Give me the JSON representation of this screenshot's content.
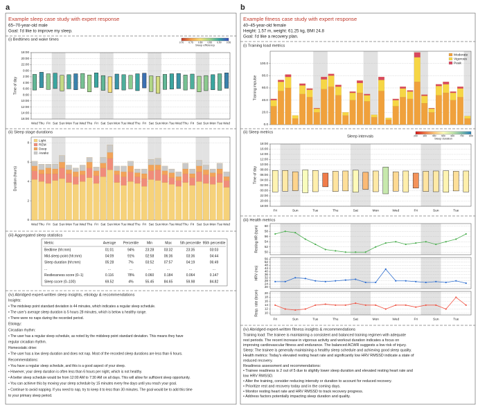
{
  "panel_a": {
    "label": "a",
    "title": "Example sleep case study with expert response",
    "subtitle_lines": [
      "65–70-year-old male",
      "Goal: I'd like to improve my sleep."
    ],
    "table": {
      "title": "(iii) Aggregated sleep statistics",
      "header": [
        "Metric",
        "Average",
        "Percentile",
        "Min",
        "Max",
        "5th percentile",
        "95th percentile"
      ],
      "rows": [
        [
          "Bedtime (hh:mm)",
          "01:01",
          "94%",
          "23:28",
          "03:32",
          "23:35",
          "03:03"
        ],
        [
          "Mid-sleep point (hh:mm)",
          "04:09",
          "91%",
          "02:58",
          "06:36",
          "03:36",
          "04:44"
        ],
        [
          "Sleep duration (hh:mm)",
          "05:28",
          "7%",
          "03:52",
          "07:57",
          "04:19",
          "06:49"
        ],
        [
          "...",
          "...",
          "...",
          "...",
          "...",
          "...",
          "..."
        ],
        [
          "Restlessness score (0–1)",
          "0.116",
          "78%",
          "0.060",
          "0.184",
          "0.064",
          "0.147"
        ],
        [
          "Sleep score (0–100)",
          "69.52",
          "4%",
          "55.45",
          "84.65",
          "59.98",
          "84.82"
        ]
      ]
    },
    "notes": {
      "title": "(iv) Abridged expert-written sleep insights, etiology & recommendations",
      "lines": [
        "Insights:",
        "• The midsleep point standard deviation is 44 minutes, which indicates a regular sleep schedule.",
        "• The user's average sleep duration is 5 hours 28 minutes, which is below a healthy range.",
        "• There were no naps during the recorded period.",
        "Etiology:",
        "Circadian rhythm:",
        "• The user has a regular sleep schedule, as noted by the midsleep point standard deviation. This means they have",
        "regular circadian rhythm.",
        "Homeostatic drive:",
        "• The user has a low sleep duration and does not nap. Most of the recorded sleep durations are less than 6 hours.",
        "Recommendations:",
        "• You have a regular sleep schedule, and this is a good aspect of your sleep.",
        "• However, your sleep duration is often less than 6 hours per night, which is not healthy.",
        "• A better sleep schedule would be from 12:00 AM to 7:30 AM on all days. This will allow for sufficient sleep opportunity.",
        "• You can achieve this by moving your sleep schedule by 15 minutes every few days until you reach your goal.",
        "• Continue to avoid napping. If you need to nap, try to keep it to less than 30 minutes. The goal would be to add this time",
        "to your primary sleep period."
      ]
    }
  },
  "panel_b": {
    "label": "b",
    "title": "Example fitness case study with expert response",
    "subtitle_lines": [
      "40–45-year-old female",
      "Height: 1.57 m, weight: 61.25 kg, BMI 24.8",
      "Goal: I'd like a recovery plan."
    ],
    "section_ii_title": "(ii) Sleep metrics",
    "section_iii_title": "(iii) Health metrics",
    "notes": {
      "title": "(iv) Abridged expert-written fitness insights & recommendations",
      "lines": [
        "Training load: The trainee is maintaining a consistent and balanced training regimen with adequate",
        "rest periods. The recent increase in vigorous activity and workout duration indicates a focus on",
        "improving cardiovascular fitness and endurance. The balanced ACWR suggests a low risk of injury.",
        "Sleep: The trainee is generally maintaining a healthy sleep schedule and achieving good sleep quality.",
        "Health metrics: Today's elevated resting heart rate and significantly low HRV RMSSD indicate a state of",
        "reduced recovery.",
        "Readiness assessment and recommendations:",
        "• Trainee readiness is 2 out of 5 due to slightly lower sleep duration and elevated resting heart rate and",
        "low HRV RMSSD.",
        "• Alter the training, consider reducing intensity or duration to account for reduced recovery.",
        "• Prioritize rest and recovery today and in the coming days.",
        "• Monitor resting heart rate and HRV RMSSD to track recovery progress.",
        "• Address factors potentially impacting sleep duration and quality."
      ]
    }
  },
  "chart_data": [
    {
      "type": "range_bar",
      "title": "(i) Bedtimes and wake times",
      "ylabel": "Time of day",
      "y_inverted": true,
      "categories": [
        "Wed",
        "Thu",
        "Fri",
        "Sat",
        "Sun",
        "Mon",
        "Tue",
        "Wed",
        "Thu",
        "Fri",
        "Sat",
        "Sun",
        "Mon",
        "Tue",
        "Wed",
        "Thu",
        "Fri",
        "Sat",
        "Sun",
        "Mon",
        "Tue",
        "Wed",
        "Thu",
        "Fri",
        "Sat",
        "Sun",
        "Mon",
        "Tue",
        "Wed"
      ],
      "start": [
        25.2,
        24.5,
        25.0,
        24.8,
        25.5,
        25.3,
        25.0,
        24.9,
        25.4,
        24.7,
        25.6,
        26.0,
        25.1,
        25.3,
        25.5,
        25.0,
        24.8,
        25.7,
        25.9,
        25.2,
        25.0,
        24.9,
        25.4,
        25.1,
        25.8,
        25.6,
        25.3,
        25.0,
        24.7
      ],
      "end": [
        30.4,
        29.6,
        30.2,
        29.9,
        30.7,
        30.0,
        30.3,
        29.8,
        31.0,
        29.5,
        30.5,
        31.2,
        30.1,
        30.4,
        30.0,
        30.6,
        29.7,
        30.9,
        31.5,
        30.2,
        30.1,
        29.9,
        30.4,
        30.0,
        31.0,
        30.6,
        30.3,
        30.5,
        29.8
      ],
      "color_values": [
        0.88,
        0.91,
        0.86,
        0.9,
        0.83,
        0.89,
        0.92,
        0.87,
        0.85,
        0.9,
        0.88,
        0.8,
        0.91,
        0.89,
        0.86,
        0.9,
        0.93,
        0.84,
        0.82,
        0.88,
        0.9,
        0.91,
        0.87,
        0.89,
        0.85,
        0.86,
        0.9,
        0.88,
        0.92
      ],
      "colorbar": {
        "label": "Sleep efficiency",
        "range": [
          0.7,
          0.95
        ],
        "ticks": [
          {
            "value": 0.7,
            "label": "0.70"
          },
          0.75,
          {
            "value": 0.8,
            "label": "0.80"
          },
          0.85,
          {
            "value": 0.9,
            "label": "0.90"
          },
          0.95
        ],
        "colors": [
          "#c0392b",
          "#f39c4a",
          "#f7e27a",
          "#9fd38a",
          "#3aa6a0",
          "#3b4cc0"
        ]
      },
      "shaded_categories": [
        3,
        4,
        10,
        11,
        17,
        18,
        24,
        25
      ],
      "ylim": [
        18,
        40
      ],
      "yticks": [
        {
          "value": 18,
          "label": "18:00"
        },
        {
          "value": 20,
          "label": "20:00"
        },
        {
          "value": 22,
          "label": "22:00"
        },
        {
          "value": 24,
          "label": "0:00"
        },
        {
          "value": 26,
          "label": "2:00"
        },
        {
          "value": 28,
          "label": "4:00"
        },
        {
          "value": 30,
          "label": "6:00"
        },
        {
          "value": 32,
          "label": "8:00"
        },
        {
          "value": 34,
          "label": "10:00"
        },
        {
          "value": 36,
          "label": "12:00"
        },
        {
          "value": 38,
          "label": "14:00"
        },
        {
          "value": 40,
          "label": "16:00"
        }
      ],
      "grid": true
    },
    {
      "type": "stacked_bar",
      "title": "(ii) Sleep stage durations",
      "ylabel": "Duration (hours)",
      "legend": "upper left",
      "categories": [
        "Wed",
        "Thu",
        "Fri",
        "Sat",
        "Sun",
        "Mon",
        "Tue",
        "Wed",
        "Thu",
        "Fri",
        "Sat",
        "Sun",
        "Mon",
        "Tue",
        "Wed",
        "Thu",
        "Fri",
        "Sat",
        "Sun",
        "Mon",
        "Tue",
        "Wed",
        "Thu",
        "Fri",
        "Sat",
        "Sun",
        "Mon",
        "Tue",
        "Wed"
      ],
      "series": [
        {
          "name": "Light",
          "color": "#f6d27a",
          "values": [
            4.2,
            4.0,
            3.8,
            4.1,
            4.3,
            3.9,
            3.7,
            4.0,
            4.4,
            3.8,
            4.5,
            5.2,
            3.9,
            3.6,
            4.0,
            3.8,
            3.5,
            4.2,
            4.1,
            3.9,
            3.7,
            3.5,
            3.9,
            3.6,
            4.0,
            3.8,
            3.7,
            3.9,
            3.4
          ]
        },
        {
          "name": "REM",
          "color": "#f08c7a",
          "values": [
            0.9,
            0.8,
            1.0,
            0.7,
            1.1,
            0.9,
            0.8,
            0.7,
            1.0,
            0.8,
            0.9,
            1.2,
            0.8,
            0.9,
            1.0,
            0.7,
            0.8,
            0.9,
            1.1,
            0.8,
            0.7,
            0.6,
            0.9,
            0.8,
            1.0,
            0.9,
            0.8,
            0.9,
            0.7
          ]
        },
        {
          "name": "Deep",
          "color": "#f2a35a",
          "values": [
            0.5,
            0.4,
            0.6,
            0.5,
            0.6,
            0.4,
            0.5,
            0.4,
            0.6,
            0.5,
            0.5,
            0.6,
            0.4,
            0.5,
            0.6,
            0.4,
            0.5,
            0.6,
            0.5,
            0.4,
            0.5,
            0.4,
            0.5,
            0.4,
            0.6,
            0.5,
            0.4,
            0.5,
            0.4
          ]
        },
        {
          "name": "Awake",
          "color": "#c9c9c9",
          "values": [
            0.5,
            0.6,
            0.4,
            0.5,
            0.7,
            0.5,
            0.4,
            0.6,
            0.5,
            0.4,
            0.6,
            0.8,
            0.5,
            0.6,
            0.5,
            0.4,
            0.5,
            0.6,
            0.7,
            0.5,
            0.4,
            0.5,
            0.6,
            0.5,
            0.6,
            0.5,
            0.4,
            0.6,
            0.5
          ]
        }
      ],
      "shaded_categories": [
        3,
        4,
        10,
        11,
        17,
        18,
        24,
        25
      ],
      "ylim": [
        0,
        8.6
      ],
      "yticks": [
        0,
        2,
        4,
        6,
        8
      ],
      "grid": true
    },
    {
      "type": "stacked_bar",
      "title": "(i) Training load metrics",
      "ylabel": "Training impulse",
      "legend": "upper right",
      "series": [
        {
          "name": "Moderate",
          "color": "#f0a13c",
          "values": [
            30,
            55,
            60,
            10,
            50,
            45,
            20,
            58,
            62,
            48,
            15,
            40,
            52,
            38,
            12,
            55,
            8,
            30,
            45,
            42,
            70,
            35,
            20,
            48,
            52,
            40,
            45,
            10
          ]
        },
        {
          "name": "Vigorous",
          "color": "#f6d645",
          "values": [
            10,
            15,
            18,
            5,
            14,
            12,
            6,
            16,
            18,
            14,
            5,
            12,
            16,
            10,
            4,
            18,
            3,
            10,
            14,
            12,
            40,
            12,
            6,
            15,
            14,
            12,
            14,
            4
          ]
        },
        {
          "name": "Peak",
          "color": "#d9485f",
          "values": [
            2,
            3,
            4,
            0,
            3,
            2,
            1,
            4,
            3,
            3,
            0,
            2,
            4,
            2,
            0,
            5,
            0,
            2,
            3,
            2,
            8,
            2,
            1,
            3,
            4,
            2,
            3,
            0
          ]
        }
      ],
      "shaded_categories": [
        6,
        7,
        13,
        14,
        20,
        21,
        27
      ],
      "ylim": [
        0,
        120
      ],
      "yticks": [
        {
          "value": 0,
          "label": "0.0"
        },
        {
          "value": 20,
          "label": "20.0"
        },
        {
          "value": 40,
          "label": "40.0"
        },
        {
          "value": 60,
          "label": "60.0"
        },
        {
          "value": 80,
          "label": "80.0"
        },
        {
          "value": 100,
          "label": "100.0"
        }
      ],
      "grid": true
    },
    {
      "type": "range_bar",
      "title": "Sleep intervals",
      "ylabel": "Time of day",
      "categories": [
        "Fri",
        null,
        "Sun",
        null,
        "Tue",
        null,
        "Thu",
        null,
        "Sat",
        null,
        "Mon",
        null,
        "Wed",
        null,
        "Fri",
        null,
        "Sun",
        null,
        "Tue",
        null
      ],
      "start": [
        23.5,
        23.8,
        24.0,
        23.2,
        23.6,
        25.5,
        23.7,
        23.9,
        23.4,
        24.5,
        23.6,
        22.8,
        23.8,
        23.5,
        25.0,
        23.7,
        23.6,
        23.4,
        23.9,
        23.5
      ],
      "end": [
        31.8,
        31.8,
        31.3,
        32.0,
        31.8,
        30.8,
        31.5,
        31.6,
        31.9,
        31.1,
        31.6,
        33.1,
        31.3,
        31.6,
        30.8,
        31.5,
        31.6,
        31.7,
        31.5,
        31.6
      ],
      "color_values": [
        480,
        460,
        420,
        510,
        470,
        300,
        450,
        440,
        490,
        380,
        460,
        600,
        430,
        470,
        330,
        450,
        460,
        480,
        440,
        470
      ],
      "colorbar": {
        "label": "Sleep duration",
        "range": [
          200,
          800
        ],
        "ticks": [
          200,
          300,
          400,
          500,
          600,
          700,
          800
        ],
        "colors": [
          "#d7191c",
          "#f07c4a",
          "#fec980",
          "#ffffbf",
          "#c7e9ad",
          "#80bfac",
          "#2b83ba"
        ]
      },
      "shaded_categories": [
        1,
        2,
        8,
        9,
        15,
        16
      ],
      "ylim": [
        18,
        42
      ],
      "yticks": [
        {
          "value": 18,
          "label": "18:00"
        },
        {
          "value": 20,
          "label": "20:00"
        },
        {
          "value": 22,
          "label": "22:00"
        },
        {
          "value": 24,
          "label": "00:00"
        },
        {
          "value": 26,
          "label": "02:00"
        },
        {
          "value": 28,
          "label": "04:00"
        },
        {
          "value": 30,
          "label": "06:00"
        },
        {
          "value": 32,
          "label": "08:00"
        },
        {
          "value": 34,
          "label": "10:00"
        },
        {
          "value": 36,
          "label": "12:00"
        },
        {
          "value": 38,
          "label": "14:00"
        },
        {
          "value": 40,
          "label": "16:00"
        },
        {
          "value": 42,
          "label": "18:00"
        }
      ],
      "grid": true
    },
    {
      "type": "line",
      "ylabel": "Resting HR (bpm)",
      "color": "#4caf50",
      "values": [
        57,
        58,
        57.5,
        55,
        53,
        51,
        50.5,
        50,
        50,
        50,
        52,
        53.5,
        54,
        53,
        53.5,
        54,
        53,
        54,
        55,
        57
      ],
      "shaded_categories": [
        1,
        2,
        8,
        9,
        15,
        16
      ],
      "ylim": [
        49,
        61
      ],
      "yticks": [
        50,
        52,
        54,
        56,
        58,
        60
      ],
      "grid": true
    },
    {
      "type": "line",
      "ylabel": "HRV (ms)",
      "color": "#2f6fd0",
      "values": [
        27,
        27,
        32,
        31,
        28,
        27,
        28,
        29,
        30,
        26,
        26,
        43,
        28,
        28,
        27,
        26,
        27,
        26,
        28,
        25
      ],
      "shaded_categories": [
        1,
        2,
        8,
        9,
        15,
        16
      ],
      "ylim": [
        18,
        58
      ],
      "yticks": [
        20,
        24,
        28,
        32,
        36,
        40,
        44,
        48,
        52,
        56
      ],
      "grid": true
    },
    {
      "type": "line",
      "ylabel": "Resp. rate (brpm)",
      "color": "#f05545",
      "categories": [
        "Fri",
        null,
        "Sun",
        null,
        "Tue",
        null,
        "Thu",
        null,
        "Sat",
        null,
        "Mon",
        null,
        "Wed",
        null,
        "Fri",
        null,
        "Sun",
        null,
        "Tue",
        null
      ],
      "values": [
        14,
        12,
        11.5,
        12,
        14,
        14.5,
        14,
        14,
        15,
        14,
        14,
        12,
        14,
        14,
        13,
        14,
        14,
        12,
        18,
        14
      ],
      "shaded_categories": [
        1,
        2,
        8,
        9,
        15,
        16
      ],
      "ylim": [
        9,
        21
      ],
      "yticks": [
        10,
        12,
        14,
        16,
        18,
        20
      ],
      "grid": true
    }
  ]
}
